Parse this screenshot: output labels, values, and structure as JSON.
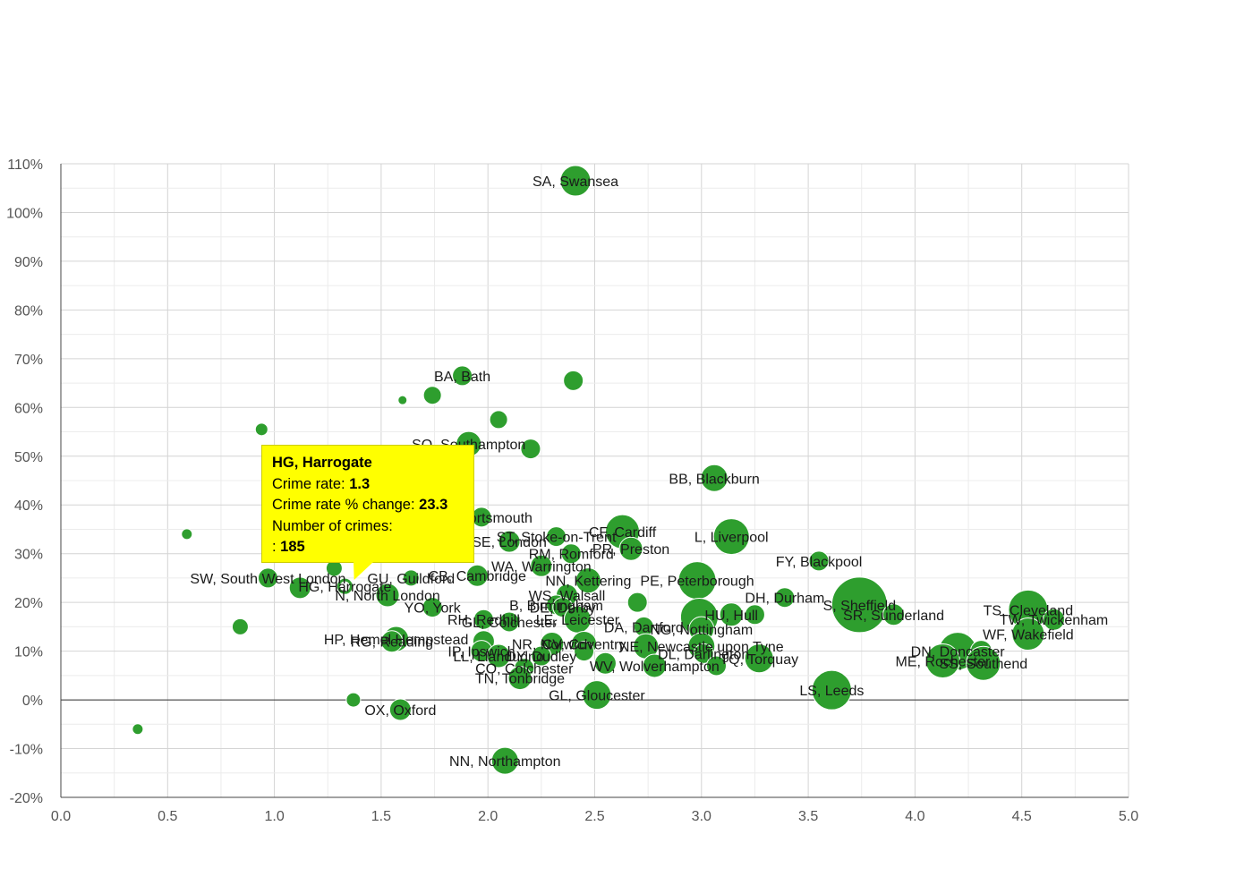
{
  "chart_data": {
    "type": "scatter",
    "title": "",
    "xlabel": "",
    "ylabel": "",
    "xlim": [
      0,
      5
    ],
    "ylim": [
      -20,
      110
    ],
    "x_ticks": [
      "0.0",
      "0.5",
      "1.0",
      "1.5",
      "2.0",
      "2.5",
      "3.0",
      "3.5",
      "4.0",
      "4.5",
      "5.0"
    ],
    "y_ticks": [
      "-20%",
      "-10%",
      "0%",
      "10%",
      "20%",
      "30%",
      "40%",
      "50%",
      "60%",
      "70%",
      "80%",
      "90%",
      "100%",
      "110%"
    ],
    "grid": true,
    "bubble_color": "#2e9e2e",
    "points": [
      {
        "label": "SA, Swansea",
        "x": 2.41,
        "y": 106.5,
        "r": 17
      },
      {
        "label": "BA, Bath",
        "x": 1.88,
        "y": 66.5,
        "r": 11
      },
      {
        "label": "",
        "x": 2.4,
        "y": 65.5,
        "r": 11
      },
      {
        "label": "",
        "x": 1.6,
        "y": 61.5,
        "r": 5
      },
      {
        "label": "",
        "x": 1.74,
        "y": 62.5,
        "r": 10
      },
      {
        "label": "",
        "x": 0.94,
        "y": 55.5,
        "r": 7
      },
      {
        "label": "",
        "x": 2.05,
        "y": 57.5,
        "r": 10
      },
      {
        "label": "SO, Southampton",
        "x": 1.91,
        "y": 52.5,
        "r": 14
      },
      {
        "label": "",
        "x": 2.2,
        "y": 51.5,
        "r": 11
      },
      {
        "label": "BB, Blackburn",
        "x": 3.06,
        "y": 45.5,
        "r": 15
      },
      {
        "label": "PO, Portsmouth",
        "x": 1.97,
        "y": 37.5,
        "r": 11
      },
      {
        "label": "",
        "x": 0.59,
        "y": 34.0,
        "r": 6
      },
      {
        "label": "CF, Cardiff",
        "x": 2.63,
        "y": 34.5,
        "r": 19
      },
      {
        "label": "L, Liverpool",
        "x": 3.14,
        "y": 33.5,
        "r": 20
      },
      {
        "label": "ST, Stoke-on-Trent",
        "x": 2.32,
        "y": 33.5,
        "r": 11
      },
      {
        "label": "SE, London",
        "x": 2.1,
        "y": 32.5,
        "r": 12
      },
      {
        "label": "PR, Preston",
        "x": 2.67,
        "y": 31.0,
        "r": 13
      },
      {
        "label": "RM, Romford",
        "x": 2.39,
        "y": 30.0,
        "r": 11
      },
      {
        "label": "FY, Blackpool",
        "x": 3.55,
        "y": 28.5,
        "r": 11
      },
      {
        "label": "WA, Warrington",
        "x": 2.25,
        "y": 27.5,
        "r": 12
      },
      {
        "label": "",
        "x": 1.28,
        "y": 27.0,
        "r": 9
      },
      {
        "label": "GU, Guildford",
        "x": 1.64,
        "y": 25.0,
        "r": 9
      },
      {
        "label": "CB, Cambridge",
        "x": 1.95,
        "y": 25.5,
        "r": 12
      },
      {
        "label": "PE, Peterborough",
        "x": 2.98,
        "y": 24.5,
        "r": 21
      },
      {
        "label": "NN, Kettering",
        "x": 2.47,
        "y": 24.5,
        "r": 14
      },
      {
        "label": "SW, South West London",
        "x": 0.97,
        "y": 25.0,
        "r": 11
      },
      {
        "label": "",
        "x": 1.12,
        "y": 23.0,
        "r": 12
      },
      {
        "label": "HG, Harrogate",
        "x": 1.33,
        "y": 23.3,
        "r": 7
      },
      {
        "label": "N, North London",
        "x": 1.53,
        "y": 21.5,
        "r": 13
      },
      {
        "label": "WS, Walsall",
        "x": 2.37,
        "y": 21.5,
        "r": 12
      },
      {
        "label": "DH, Durham",
        "x": 3.39,
        "y": 21.0,
        "r": 11
      },
      {
        "label": "S, Sheffield",
        "x": 3.74,
        "y": 19.5,
        "r": 31
      },
      {
        "label": "",
        "x": 2.7,
        "y": 20.0,
        "r": 11
      },
      {
        "label": "B, Birmingham",
        "x": 2.32,
        "y": 19.5,
        "r": 11
      },
      {
        "label": "DE, Derby",
        "x": 2.35,
        "y": 19.0,
        "r": 11
      },
      {
        "label": "YO, York",
        "x": 1.74,
        "y": 19.0,
        "r": 11
      },
      {
        "label": "TS, Cleveland",
        "x": 4.53,
        "y": 18.5,
        "r": 22
      },
      {
        "label": "SR, Sunderland",
        "x": 3.9,
        "y": 17.5,
        "r": 12
      },
      {
        "label": "HU, Hull",
        "x": 3.14,
        "y": 17.5,
        "r": 13
      },
      {
        "label": "",
        "x": 3.25,
        "y": 17.5,
        "r": 11
      },
      {
        "label": "",
        "x": 2.99,
        "y": 17.0,
        "r": 21
      },
      {
        "label": "TW, Twickenham",
        "x": 4.65,
        "y": 16.5,
        "r": 12
      },
      {
        "label": "LE, Leicester",
        "x": 2.42,
        "y": 16.5,
        "r": 15
      },
      {
        "label": "RH, Redhill",
        "x": 1.98,
        "y": 16.5,
        "r": 11
      },
      {
        "label": "GL, Colchester",
        "x": 2.1,
        "y": 16.0,
        "r": 11
      },
      {
        "label": "",
        "x": 0.84,
        "y": 15.0,
        "r": 9
      },
      {
        "label": "DA, Dartford",
        "x": 2.73,
        "y": 15.0,
        "r": 11
      },
      {
        "label": "NG, Nottingham",
        "x": 3.0,
        "y": 14.5,
        "r": 14
      },
      {
        "label": "WF, Wakefield",
        "x": 4.53,
        "y": 13.5,
        "r": 18
      },
      {
        "label": "HP, Hemel Hempstead",
        "x": 1.57,
        "y": 12.5,
        "r": 14
      },
      {
        "label": "RG, Reading",
        "x": 1.55,
        "y": 12.0,
        "r": 12
      },
      {
        "label": "",
        "x": 1.98,
        "y": 12.0,
        "r": 12
      },
      {
        "label": "CV, Coventry",
        "x": 2.45,
        "y": 11.5,
        "r": 14
      },
      {
        "label": "NE, Newcastle upon Tyne",
        "x": 3.0,
        "y": 11.0,
        "r": 15
      },
      {
        "label": "",
        "x": 2.74,
        "y": 11.0,
        "r": 14
      },
      {
        "label": "NR, Norwich",
        "x": 2.3,
        "y": 11.5,
        "r": 13
      },
      {
        "label": "IP, Ipswich",
        "x": 1.97,
        "y": 10.0,
        "r": 12
      },
      {
        "label": "DN, Doncaster",
        "x": 4.2,
        "y": 10.0,
        "r": 21
      },
      {
        "label": "",
        "x": 4.31,
        "y": 10.0,
        "r": 12
      },
      {
        "label": "",
        "x": 2.45,
        "y": 10.0,
        "r": 11
      },
      {
        "label": "DL, Darlington",
        "x": 3.01,
        "y": 9.5,
        "r": 11
      },
      {
        "label": "LL, Llandudno",
        "x": 2.05,
        "y": 9.0,
        "r": 13
      },
      {
        "label": "DY, Dudley",
        "x": 2.25,
        "y": 9.0,
        "r": 11
      },
      {
        "label": "TQ, Torquay",
        "x": 3.27,
        "y": 8.5,
        "r": 16
      },
      {
        "label": "ME, Rochester",
        "x": 4.13,
        "y": 8.0,
        "r": 19
      },
      {
        "label": "SS, Southend",
        "x": 4.32,
        "y": 7.5,
        "r": 19
      },
      {
        "label": "",
        "x": 2.55,
        "y": 7.5,
        "r": 12
      },
      {
        "label": "WV, Wolverhampton",
        "x": 2.78,
        "y": 7.0,
        "r": 13
      },
      {
        "label": "CO, Colchester",
        "x": 2.17,
        "y": 6.5,
        "r": 11
      },
      {
        "label": "",
        "x": 3.07,
        "y": 7.0,
        "r": 11
      },
      {
        "label": "TN, Tonbridge",
        "x": 2.15,
        "y": 4.5,
        "r": 13
      },
      {
        "label": "LS, Leeds",
        "x": 3.61,
        "y": 2.0,
        "r": 22
      },
      {
        "label": "GL, Gloucester",
        "x": 2.51,
        "y": 1.0,
        "r": 16
      },
      {
        "label": "",
        "x": 1.37,
        "y": 0.0,
        "r": 8
      },
      {
        "label": "OX, Oxford",
        "x": 1.59,
        "y": -2.0,
        "r": 12
      },
      {
        "label": "",
        "x": 0.36,
        "y": -6.0,
        "r": 6
      },
      {
        "label": "NN, Northampton",
        "x": 2.08,
        "y": -12.5,
        "r": 15
      }
    ]
  },
  "tooltip": {
    "title": "HG, Harrogate",
    "rate_label": "Crime rate: ",
    "rate_value": "1.3",
    "change_label": "Crime rate % change: ",
    "change_value": "23.3",
    "count_label": "Number of crimes:",
    "count_prefix": ": ",
    "count_value": "185"
  }
}
